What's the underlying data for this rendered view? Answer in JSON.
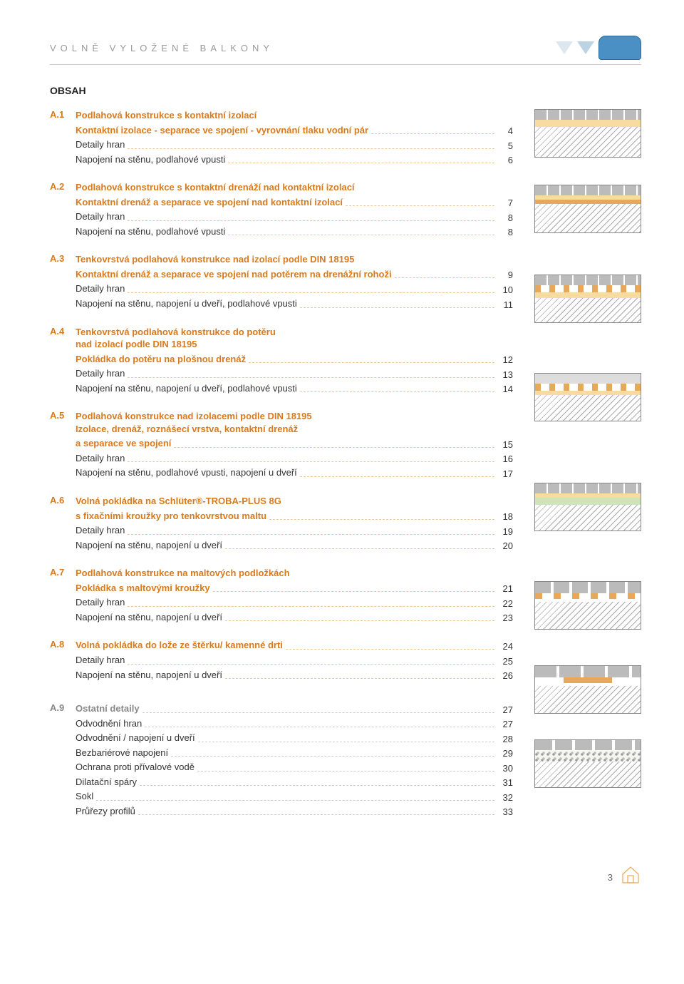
{
  "header": {
    "title": "VOLNĚ VYLOŽENÉ BALKONY"
  },
  "obsah_label": "OBSAH",
  "sections": [
    {
      "num": "A.1",
      "title_lines": [
        "Podlahová konstrukce s kontaktní izolací",
        "Kontaktní izolace - separace ve spojení - vyrovnání tlaku vodní pár"
      ],
      "title_page": "4",
      "rows": [
        {
          "label": "Detaily hran",
          "page": "5"
        },
        {
          "label": "Napojení na stěnu, podlahové vpusti",
          "page": "6"
        }
      ]
    },
    {
      "num": "A.2",
      "title_lines": [
        "Podlahová konstrukce s kontaktní drenáží nad kontaktní izolací",
        "Kontaktní drenáž a separace ve spojení nad kontaktní izolací"
      ],
      "title_page": "7",
      "rows": [
        {
          "label": "Detaily hran",
          "page": "8"
        },
        {
          "label": "Napojení na stěnu, podlahové vpusti",
          "page": "8"
        }
      ]
    },
    {
      "num": "A.3",
      "title_lines": [
        "Tenkovrstvá podlahová konstrukce nad izolací podle DIN 18195",
        "Kontaktní drenáž a separace ve spojení nad potěrem na drenážní rohoži"
      ],
      "title_page": "9",
      "rows": [
        {
          "label": "Detaily hran",
          "page": "10"
        },
        {
          "label": "Napojení na stěnu, napojení u dveří, podlahové vpusti",
          "page": "11"
        }
      ]
    },
    {
      "num": "A.4",
      "title_lines": [
        "Tenkovrstvá podlahová konstrukce do potěru",
        "nad izolací podle DIN 18195",
        "Pokládka do potěru na plošnou drenáž"
      ],
      "title_page": "12",
      "rows": [
        {
          "label": "Detaily hran",
          "page": "13"
        },
        {
          "label": "Napojení na stěnu, napojení u dveří, podlahové vpusti",
          "page": "14"
        }
      ]
    },
    {
      "num": "A.5",
      "title_lines": [
        "Podlahová konstrukce nad izolacemi podle DIN 18195",
        "Izolace, drenáž, roznášecí vrstva, kontaktní drenáž",
        "a separace ve spojení"
      ],
      "title_page": "15",
      "rows": [
        {
          "label": "Detaily hran",
          "page": "16"
        },
        {
          "label": "Napojení na stěnu, podlahové vpusti, napojení u dveří",
          "page": "17"
        }
      ]
    },
    {
      "num": "A.6",
      "title_lines": [
        "Volná pokládka na Schlüter®-TROBA-PLUS 8G",
        "s fixačními kroužky pro tenkovrstvou maltu"
      ],
      "title_page": "18",
      "rows": [
        {
          "label": "Detaily hran",
          "page": "19"
        },
        {
          "label": "Napojení na stěnu, napojení u dveří",
          "page": "20"
        }
      ]
    },
    {
      "num": "A.7",
      "title_lines": [
        "Podlahová konstrukce na maltových podložkách",
        "Pokládka s maltovými kroužky"
      ],
      "title_page": "21",
      "rows": [
        {
          "label": "Detaily hran",
          "page": "22"
        },
        {
          "label": "Napojení na stěnu, napojení u dveří",
          "page": "23"
        }
      ]
    },
    {
      "num": "A.8",
      "title_lines": [
        "Volná pokládka do lože ze štěrku/ kamenné drti"
      ],
      "title_page": "24",
      "rows": [
        {
          "label": "Detaily hran",
          "page": "25"
        },
        {
          "label": "Napojení na stěnu, napojení u dveří",
          "page": "26"
        }
      ]
    }
  ],
  "section_a9": {
    "num": "A.9",
    "title": "Ostatní detaily",
    "title_page": "27",
    "rows": [
      {
        "label": "Odvodnění hran",
        "page": "27"
      },
      {
        "label": "Odvodnění / napojení u dveří",
        "page": "28"
      },
      {
        "label": "Bezbariérové napojení",
        "page": "29"
      },
      {
        "label": "Ochrana proti přívalové vodě",
        "page": "30"
      },
      {
        "label": "Dilatační spáry",
        "page": "31"
      },
      {
        "label": "Sokl",
        "page": "32"
      },
      {
        "label": "Průřezy profilů",
        "page": "33"
      }
    ]
  },
  "thumb_colors": {
    "tile": "#bbbbbb",
    "yellow": "#f7dba0",
    "orange": "#e8a85a",
    "green": "#cde5b8",
    "hatch": "#aaaaaa",
    "blue_badge": "#4a90c4"
  },
  "page_number": "3"
}
